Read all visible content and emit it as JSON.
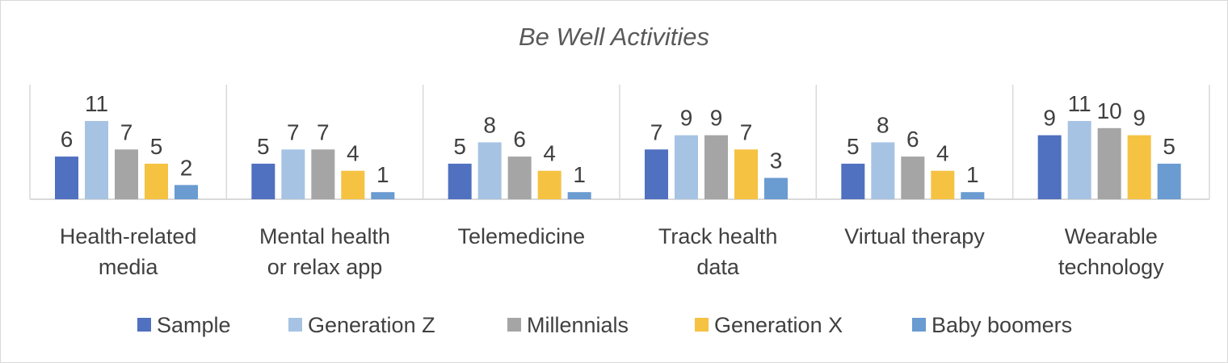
{
  "chart_data": {
    "type": "bar",
    "title": "Be Well Activities",
    "xlabel": "",
    "ylabel": "",
    "ylim": [
      0,
      11
    ],
    "grid": false,
    "legend_position": "bottom",
    "categories": [
      [
        "Health-related",
        "media"
      ],
      [
        "Mental health",
        "or relax app"
      ],
      [
        "Telemedicine"
      ],
      [
        "Track health",
        "data"
      ],
      [
        "Virtual therapy"
      ],
      [
        "Wearable",
        "technology"
      ]
    ],
    "series": [
      {
        "name": "Sample",
        "color": "#5070c0",
        "values": [
          6,
          5,
          5,
          7,
          5,
          9
        ]
      },
      {
        "name": "Generation Z",
        "color": "#a6c3e4",
        "values": [
          11,
          7,
          8,
          9,
          8,
          11
        ]
      },
      {
        "name": "Millennials",
        "color": "#a5a5a5",
        "values": [
          7,
          7,
          6,
          9,
          6,
          10
        ]
      },
      {
        "name": "Generation X",
        "color": "#f5c242",
        "values": [
          5,
          4,
          4,
          7,
          4,
          9
        ]
      },
      {
        "name": "Baby boomers",
        "color": "#6a9bd1",
        "values": [
          2,
          1,
          1,
          3,
          1,
          5
        ]
      }
    ]
  }
}
